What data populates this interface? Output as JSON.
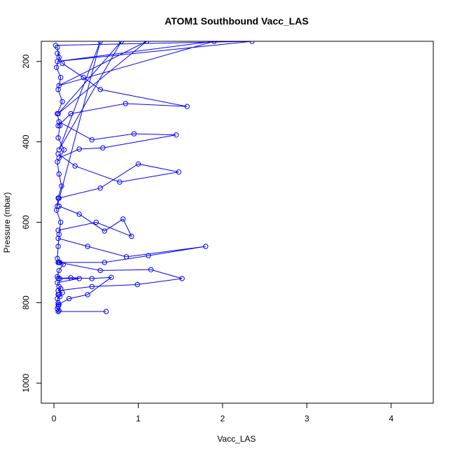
{
  "chart_data": {
    "type": "line",
    "title": "ATOM1 Southbound Vacc_LAS",
    "xlabel": "Vacc_LAS",
    "ylabel": "Pressure (mbar)",
    "xlim": [
      -0.15,
      4.5
    ],
    "ylim": [
      1050,
      150
    ],
    "y_reversed": true,
    "x_ticks": [
      0,
      1,
      2,
      3,
      4
    ],
    "y_ticks": [
      200,
      400,
      600,
      800,
      1000
    ],
    "grid": false,
    "legend": "none",
    "marker": "open-circle",
    "series": [
      {
        "x": [
          0.04,
          0.06,
          0.03,
          0.08,
          0.05,
          0.1,
          0.04,
          0.07,
          0.05,
          0.12,
          0.04,
          0.06,
          0.09,
          0.05,
          0.03,
          0.08,
          0.06,
          0.05,
          0.04,
          0.07,
          0.05,
          0.11,
          0.06,
          0.04,
          0.07,
          0.05,
          0.3,
          0.04,
          0.06,
          0.08,
          0.05,
          0.1,
          0.06,
          0.05,
          0.07,
          0.04,
          0.05,
          0.06,
          0.05,
          0.04,
          0.06,
          0.05,
          0.62
        ],
        "y": [
          165,
          190,
          215,
          240,
          270,
          300,
          330,
          360,
          390,
          420,
          450,
          480,
          510,
          540,
          570,
          600,
          630,
          660,
          690,
          700,
          700,
          705,
          720,
          735,
          740,
          740,
          740,
          750,
          760,
          765,
          770,
          775,
          780,
          780,
          785,
          790,
          800,
          805,
          810,
          815,
          820,
          822,
          822
        ]
      },
      {
        "x": [
          0.04,
          0.1,
          0.35,
          0.55,
          1.58,
          0.85,
          0.2,
          0.05
        ],
        "y": [
          180,
          205,
          240,
          270,
          312,
          305,
          330,
          360
        ]
      },
      {
        "x": [
          0.06,
          0.45,
          0.95,
          1.45,
          0.58,
          0.3,
          0.06
        ],
        "y": [
          350,
          395,
          380,
          383,
          415,
          418,
          440
        ]
      },
      {
        "x": [
          0.05,
          0.25,
          0.78,
          1.48,
          1.0,
          0.55,
          0.06
        ],
        "y": [
          430,
          460,
          500,
          475,
          455,
          515,
          540
        ]
      },
      {
        "x": [
          0.06,
          0.3,
          0.6,
          0.82,
          0.92,
          0.5,
          0.05
        ],
        "y": [
          560,
          580,
          622,
          592,
          635,
          600,
          620
        ]
      },
      {
        "x": [
          0.05,
          0.4,
          0.86,
          1.8,
          1.12,
          0.6,
          0.05
        ],
        "y": [
          640,
          660,
          686,
          660,
          683,
          700,
          700
        ]
      },
      {
        "x": [
          0.06,
          0.55,
          1.15,
          1.52,
          0.99,
          0.45,
          0.05
        ],
        "y": [
          700,
          720,
          718,
          740,
          755,
          760,
          770
        ]
      },
      {
        "x": [
          0.05,
          0.2,
          0.45,
          0.68,
          0.4,
          0.18,
          0.05
        ],
        "y": [
          740,
          738,
          740,
          737,
          780,
          790,
          805
        ]
      },
      {
        "x": [
          0.02,
          2.35,
          0.04,
          1.9,
          0.06,
          1.1,
          0.05,
          0.8,
          0.06,
          0.55,
          0.04
        ],
        "y": [
          160,
          150,
          200,
          150,
          260,
          150,
          330,
          150,
          420,
          150,
          560
        ]
      }
    ]
  }
}
